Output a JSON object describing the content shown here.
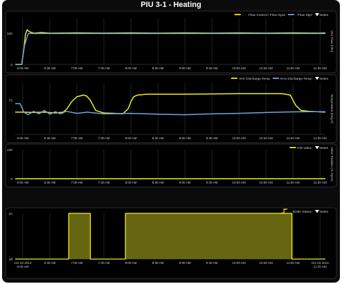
{
  "title": "PIU 3-1 - Heating",
  "time_ticks": [
    "6:00 AM",
    "6:30 AM",
    "7:00 AM",
    "7:30 AM",
    "8:00 AM",
    "8:30 AM",
    "9:00 AM",
    "9:30 AM",
    "10:00 AM",
    "10:30 AM",
    "11:00 AM",
    "11:30 AM"
  ],
  "notes_label": "Notes",
  "colors": {
    "yellow": "#f2ee1c",
    "blue": "#6ea8e2",
    "grid": "#3a3a3a",
    "text": "#cfcfcf"
  },
  "chart_data": [
    {
      "type": "line",
      "ylabel": "VAV Flow (cfm)",
      "ylim": [
        0,
        150
      ],
      "yticks": [
        0,
        100
      ],
      "legend_position": "top-right",
      "series": [
        {
          "name": "Flow Control / Flow Input",
          "color": "#f2ee1c",
          "x": [
            5.86,
            5.98,
            6.02,
            6.05,
            6.08,
            6.12,
            6.2,
            6.35,
            6.5,
            7.0,
            7.5,
            8.0,
            8.5,
            9.0,
            9.5,
            10.0,
            10.5,
            11.0,
            11.5,
            11.6
          ],
          "y": [
            0,
            0,
            50,
            98,
            112,
            106,
            101,
            103,
            101,
            102,
            101,
            102,
            101,
            102,
            101,
            102,
            101,
            102,
            101,
            102
          ]
        },
        {
          "name": "Flow Stpt",
          "color": "#6ea8e2",
          "x": [
            5.86,
            5.98,
            6.03,
            6.1,
            6.2,
            7.0,
            8.0,
            9.0,
            10.0,
            11.0,
            11.6
          ],
          "y": [
            0,
            0,
            60,
            100,
            100,
            100,
            100,
            100,
            100,
            100,
            100
          ]
        }
      ]
    },
    {
      "type": "line",
      "ylabel": "Temperature (Deg F)",
      "ylim": [
        55,
        85
      ],
      "yticks": [
        75
      ],
      "legend_position": "top-right",
      "series": [
        {
          "name": "VAV Discharge Temp",
          "color": "#f2ee1c",
          "x": [
            5.86,
            6.0,
            6.2,
            6.4,
            6.6,
            6.75,
            6.82,
            6.9,
            7.0,
            7.12,
            7.18,
            7.25,
            7.35,
            7.5,
            7.7,
            7.85,
            7.95,
            8.0,
            8.05,
            8.12,
            8.3,
            9.0,
            10.0,
            10.8,
            10.95,
            11.05,
            11.15,
            11.3,
            11.6
          ],
          "y": [
            68,
            68,
            67.8,
            68,
            67.5,
            68,
            70,
            74,
            77,
            78,
            77.5,
            75,
            69,
            67.5,
            67.3,
            67,
            70,
            74,
            77,
            78,
            78.5,
            78.5,
            78.8,
            78.8,
            78,
            72,
            69,
            68.5,
            68
          ]
        },
        {
          "name": "AHU Discharge Temp",
          "color": "#6ea8e2",
          "x": [
            5.86,
            5.95,
            6.02,
            6.1,
            6.2,
            6.3,
            6.4,
            6.5,
            6.6,
            6.7,
            6.8,
            7.0,
            7.2,
            7.5,
            8.0,
            8.5,
            9.0,
            9.5,
            10.0,
            10.5,
            11.0,
            11.3,
            11.6
          ],
          "y": [
            73,
            73,
            68,
            66.5,
            68.5,
            67,
            69,
            66.8,
            68.3,
            67,
            68.5,
            67.3,
            68,
            67,
            67.3,
            66.8,
            66.5,
            67,
            67.3,
            67.8,
            68.2,
            68.3,
            68.3
          ]
        }
      ]
    },
    {
      "type": "line",
      "ylabel": "Valve Position (% Open)",
      "ylim": [
        0,
        100
      ],
      "yticks": [
        0,
        100
      ],
      "legend_position": "top-right",
      "series": [
        {
          "name": "HW Valve",
          "color": "#f2ee1c",
          "x": [
            5.86,
            11.6
          ],
          "y": [
            0,
            0
          ]
        }
      ]
    },
    {
      "type": "area",
      "ylabel": "",
      "ylim": [
        0,
        1
      ],
      "yticks": [
        0,
        1
      ],
      "ytick_labels": [
        "off",
        "on"
      ],
      "legend_position": "top-right",
      "x_start_label": [
        "Oct 23 2013",
        "6:00 AM"
      ],
      "x_end_label": [
        "Oct 23 2013",
        "11:30 AM"
      ],
      "series": [
        {
          "name": "Boiler Status",
          "color": "#f2ee1c",
          "x": [
            5.86,
            6.85,
            6.85,
            7.25,
            7.25,
            7.9,
            7.9,
            10.98,
            10.98,
            11.6
          ],
          "y": [
            0,
            0,
            1,
            1,
            0,
            0,
            1,
            1,
            0,
            0
          ]
        }
      ]
    }
  ]
}
